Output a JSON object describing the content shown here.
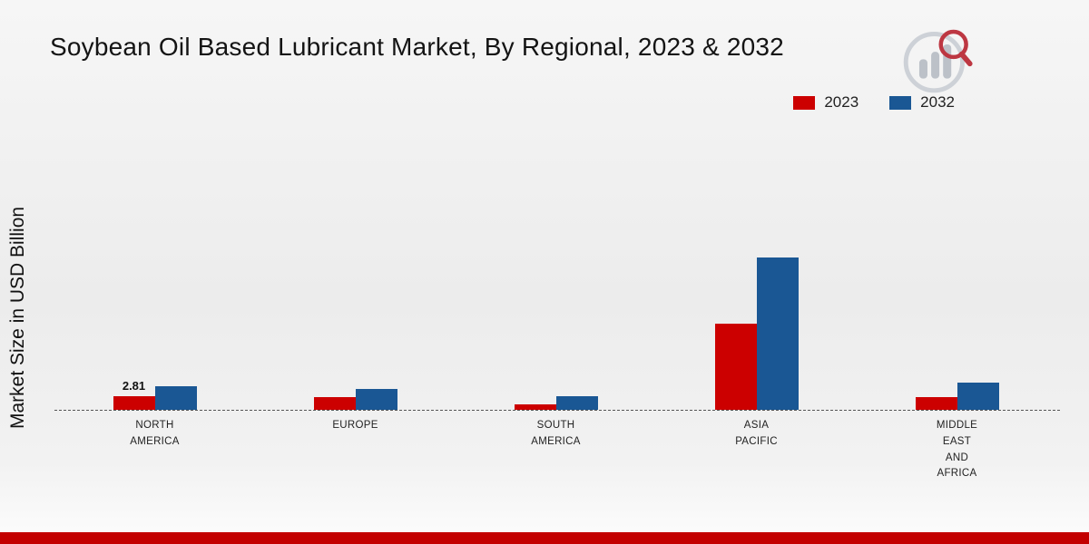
{
  "title": "Soybean Oil Based Lubricant Market, By Regional, 2023 & 2032",
  "chart_data": {
    "type": "bar",
    "title": "Soybean Oil Based Lubricant Market, By Regional, 2023 & 2032",
    "ylabel": "Market Size in USD Billion",
    "xlabel": "",
    "ylim": [
      0,
      60
    ],
    "grid": false,
    "legend_position": "top-right",
    "categories": [
      "NORTH\nAMERICA",
      "EUROPE",
      "SOUTH\nAMERICA",
      "ASIA\nPACIFIC",
      "MIDDLE\nEAST\nAND\nAFRICA"
    ],
    "series": [
      {
        "name": "2023",
        "color": "#cc0000",
        "values": [
          2.81,
          2.6,
          1.2,
          18.2,
          2.75
        ]
      },
      {
        "name": "2032",
        "color": "#1a5794",
        "values": [
          5.0,
          4.4,
          2.8,
          32.4,
          5.7
        ]
      }
    ],
    "annotations": [
      {
        "category_index": 0,
        "series_index": 0,
        "text": "2.81"
      }
    ]
  },
  "colors": {
    "series_2023": "#cc0000",
    "series_2032": "#1a5794",
    "bottom_strip": "#c30000"
  },
  "icons": {
    "logo": "mrfr-bar-chart-magnifier-logo"
  }
}
